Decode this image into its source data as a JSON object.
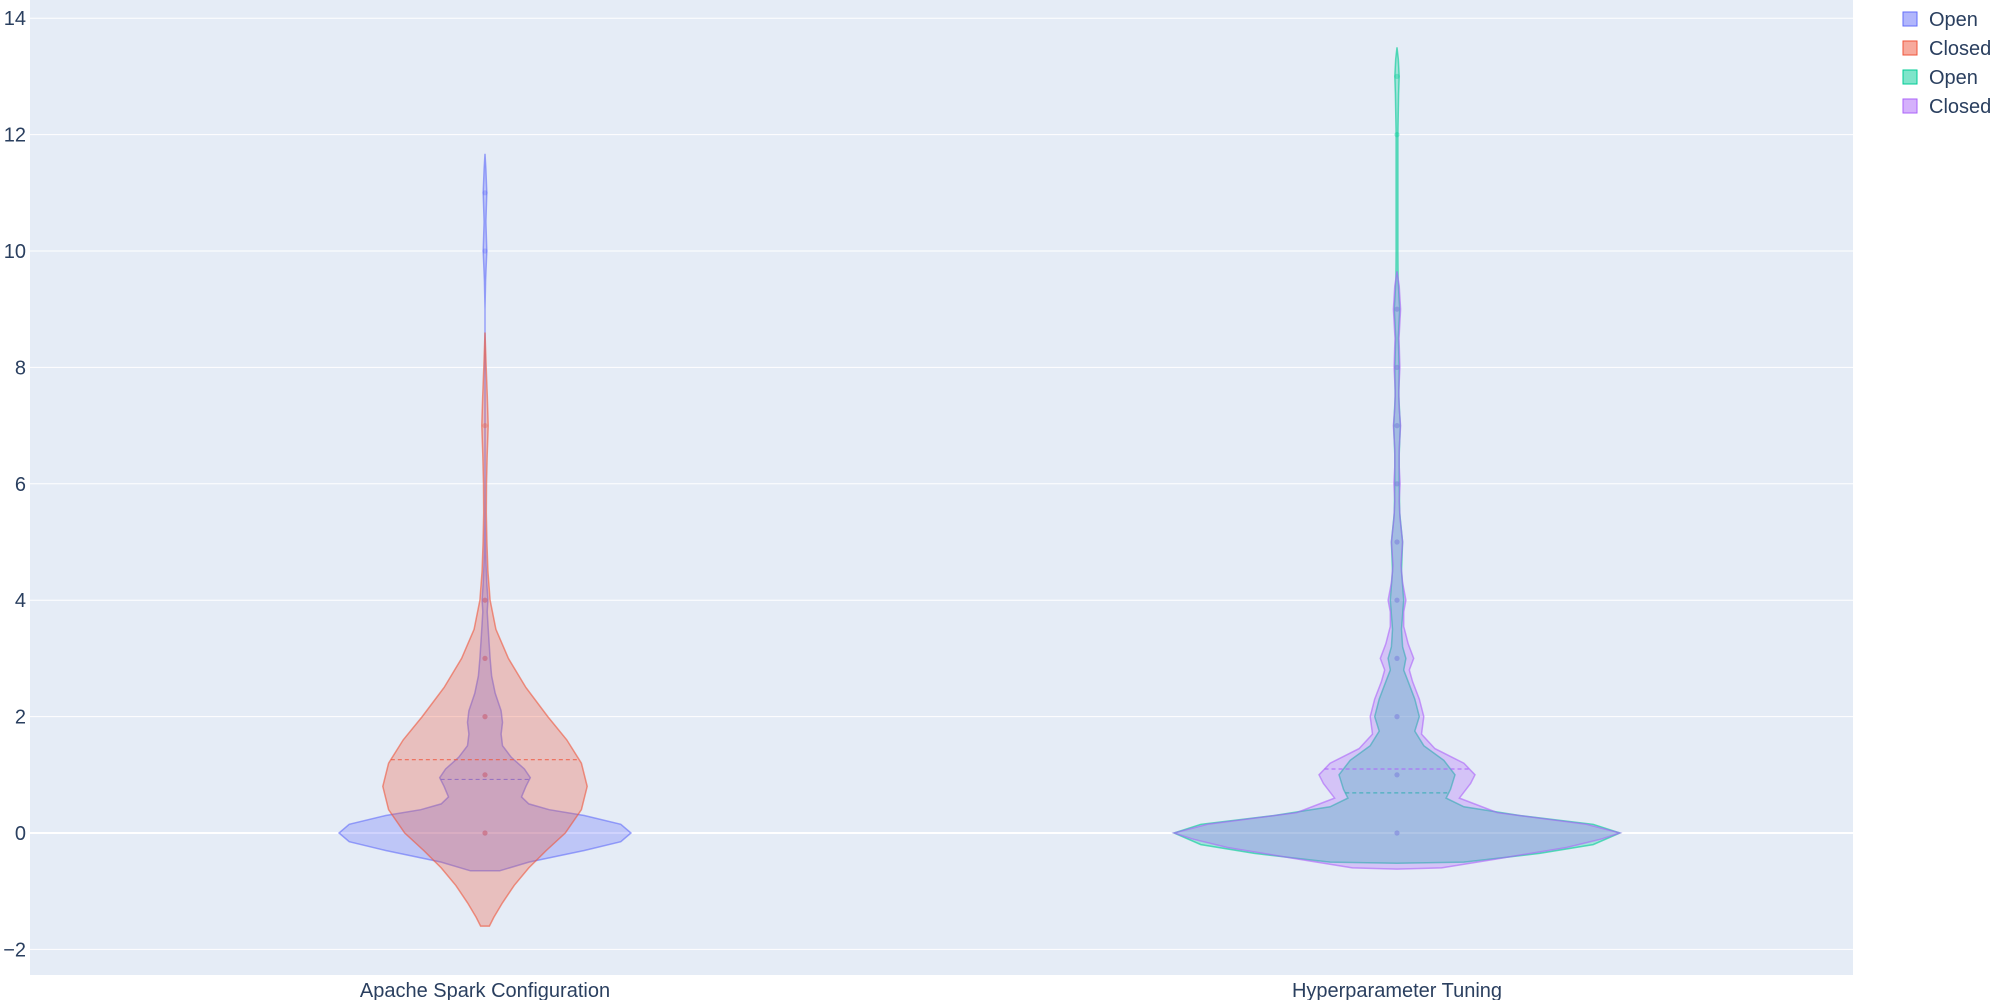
{
  "chart_data": {
    "type": "violin",
    "title": "",
    "xlabel": "",
    "ylabel": "",
    "categories": [
      "Apache Spark Configuration",
      "Hyperparameter Tuning"
    ],
    "ylim": [
      -2.4,
      14.1
    ],
    "yticks": [
      -2,
      0,
      2,
      4,
      6,
      8,
      10,
      12,
      14
    ],
    "ytick_labels": [
      "−2",
      "0",
      "2",
      "4",
      "6",
      "8",
      "10",
      "12",
      "14"
    ],
    "grid": true,
    "legend_position": "top-right",
    "colors": {
      "plot_bg": "#e5ecf6",
      "grid": "#ffffff",
      "text": "#2a3f5f"
    },
    "series": [
      {
        "name": "Open",
        "category": "Apache Spark Configuration",
        "color": "#636efa",
        "mean": 0.92,
        "points": [
          0,
          1,
          2,
          3,
          4,
          10,
          11
        ],
        "density": [
          [
            -0.65,
            0.1
          ],
          [
            -0.5,
            0.3
          ],
          [
            -0.3,
            0.68
          ],
          [
            -0.15,
            0.93
          ],
          [
            0,
            1.0
          ],
          [
            0.15,
            0.93
          ],
          [
            0.3,
            0.68
          ],
          [
            0.4,
            0.44
          ],
          [
            0.5,
            0.3
          ],
          [
            0.62,
            0.25
          ],
          [
            0.8,
            0.28
          ],
          [
            0.95,
            0.31
          ],
          [
            1.1,
            0.27
          ],
          [
            1.3,
            0.18
          ],
          [
            1.5,
            0.12
          ],
          [
            1.7,
            0.11
          ],
          [
            1.9,
            0.12
          ],
          [
            2.1,
            0.11
          ],
          [
            2.4,
            0.07
          ],
          [
            2.7,
            0.045
          ],
          [
            3.0,
            0.035
          ],
          [
            3.4,
            0.025
          ],
          [
            3.8,
            0.015
          ],
          [
            4.0,
            0.02
          ],
          [
            4.3,
            0.012
          ],
          [
            4.8,
            0.004
          ],
          [
            5.5,
            0.0
          ],
          [
            7.5,
            0.0
          ],
          [
            9.0,
            0.0
          ],
          [
            9.5,
            0.004
          ],
          [
            10.0,
            0.012
          ],
          [
            10.5,
            0.006
          ],
          [
            11.0,
            0.012
          ],
          [
            11.4,
            0.006
          ],
          [
            11.67,
            0.0
          ]
        ]
      },
      {
        "name": "Closed",
        "category": "Apache Spark Configuration",
        "color": "#ef553b",
        "mean": 1.26,
        "points": [
          0,
          1,
          2,
          3,
          4,
          7
        ],
        "density": [
          [
            -1.6,
            0.03
          ],
          [
            -1.45,
            0.06
          ],
          [
            -1.2,
            0.12
          ],
          [
            -0.9,
            0.2
          ],
          [
            -0.6,
            0.3
          ],
          [
            -0.3,
            0.42
          ],
          [
            0,
            0.55
          ],
          [
            0.4,
            0.66
          ],
          [
            0.8,
            0.7
          ],
          [
            1.2,
            0.66
          ],
          [
            1.6,
            0.56
          ],
          [
            2.0,
            0.43
          ],
          [
            2.5,
            0.28
          ],
          [
            3.0,
            0.16
          ],
          [
            3.5,
            0.075
          ],
          [
            4.0,
            0.035
          ],
          [
            4.5,
            0.02
          ],
          [
            5.0,
            0.013
          ],
          [
            5.5,
            0.009
          ],
          [
            6.0,
            0.01
          ],
          [
            6.5,
            0.015
          ],
          [
            7.0,
            0.022
          ],
          [
            7.5,
            0.016
          ],
          [
            8.0,
            0.008
          ],
          [
            8.6,
            0.0
          ]
        ]
      },
      {
        "name": "Open",
        "category": "Hyperparameter Tuning",
        "color": "#00cc96",
        "mean": 0.69,
        "points": [
          0,
          1,
          2,
          3,
          4,
          5,
          6,
          7,
          8,
          9,
          12,
          13
        ],
        "density": [
          [
            -0.52,
            0.0
          ],
          [
            -0.5,
            0.3
          ],
          [
            -0.35,
            0.64
          ],
          [
            -0.2,
            0.88
          ],
          [
            0,
            1.0
          ],
          [
            0.15,
            0.88
          ],
          [
            0.3,
            0.55
          ],
          [
            0.45,
            0.3
          ],
          [
            0.6,
            0.22
          ],
          [
            0.75,
            0.24
          ],
          [
            1.0,
            0.26
          ],
          [
            1.25,
            0.21
          ],
          [
            1.5,
            0.12
          ],
          [
            1.75,
            0.08
          ],
          [
            2.0,
            0.1
          ],
          [
            2.3,
            0.08
          ],
          [
            2.6,
            0.05
          ],
          [
            2.8,
            0.03
          ],
          [
            3.0,
            0.04
          ],
          [
            3.2,
            0.025
          ],
          [
            3.5,
            0.02
          ],
          [
            4.0,
            0.03
          ],
          [
            4.5,
            0.02
          ],
          [
            5.0,
            0.025
          ],
          [
            5.5,
            0.012
          ],
          [
            6.0,
            0.01
          ],
          [
            6.5,
            0.01
          ],
          [
            7.0,
            0.015
          ],
          [
            7.5,
            0.008
          ],
          [
            8.0,
            0.01
          ],
          [
            8.5,
            0.006
          ],
          [
            9.0,
            0.012
          ],
          [
            9.5,
            0.005
          ],
          [
            10.0,
            0.004
          ],
          [
            11.0,
            0.004
          ],
          [
            12.0,
            0.004
          ],
          [
            12.7,
            0.007
          ],
          [
            13.0,
            0.01
          ],
          [
            13.3,
            0.006
          ],
          [
            13.5,
            0.0
          ]
        ]
      },
      {
        "name": "Closed",
        "category": "Hyperparameter Tuning",
        "color": "#ab63fa",
        "mean": 1.1,
        "points": [
          0,
          1,
          2,
          3,
          4,
          5,
          6,
          7,
          8,
          9
        ],
        "density": [
          [
            -0.62,
            0.0
          ],
          [
            -0.6,
            0.2
          ],
          [
            -0.45,
            0.44
          ],
          [
            -0.25,
            0.76
          ],
          [
            -0.1,
            0.92
          ],
          [
            0,
            1.0
          ],
          [
            0.15,
            0.85
          ],
          [
            0.35,
            0.45
          ],
          [
            0.6,
            0.28
          ],
          [
            0.85,
            0.33
          ],
          [
            1.0,
            0.35
          ],
          [
            1.2,
            0.3
          ],
          [
            1.45,
            0.17
          ],
          [
            1.7,
            0.11
          ],
          [
            2.0,
            0.12
          ],
          [
            2.3,
            0.1
          ],
          [
            2.6,
            0.07
          ],
          [
            2.8,
            0.055
          ],
          [
            3.0,
            0.075
          ],
          [
            3.25,
            0.05
          ],
          [
            3.55,
            0.03
          ],
          [
            3.8,
            0.03
          ],
          [
            4.0,
            0.04
          ],
          [
            4.3,
            0.025
          ],
          [
            4.6,
            0.018
          ],
          [
            5.0,
            0.025
          ],
          [
            5.4,
            0.014
          ],
          [
            5.7,
            0.01
          ],
          [
            6.0,
            0.014
          ],
          [
            6.3,
            0.01
          ],
          [
            6.6,
            0.01
          ],
          [
            7.0,
            0.016
          ],
          [
            7.3,
            0.01
          ],
          [
            7.6,
            0.008
          ],
          [
            8.0,
            0.013
          ],
          [
            8.5,
            0.009
          ],
          [
            9.0,
            0.016
          ],
          [
            9.4,
            0.01
          ],
          [
            9.65,
            0.0
          ]
        ]
      }
    ]
  }
}
